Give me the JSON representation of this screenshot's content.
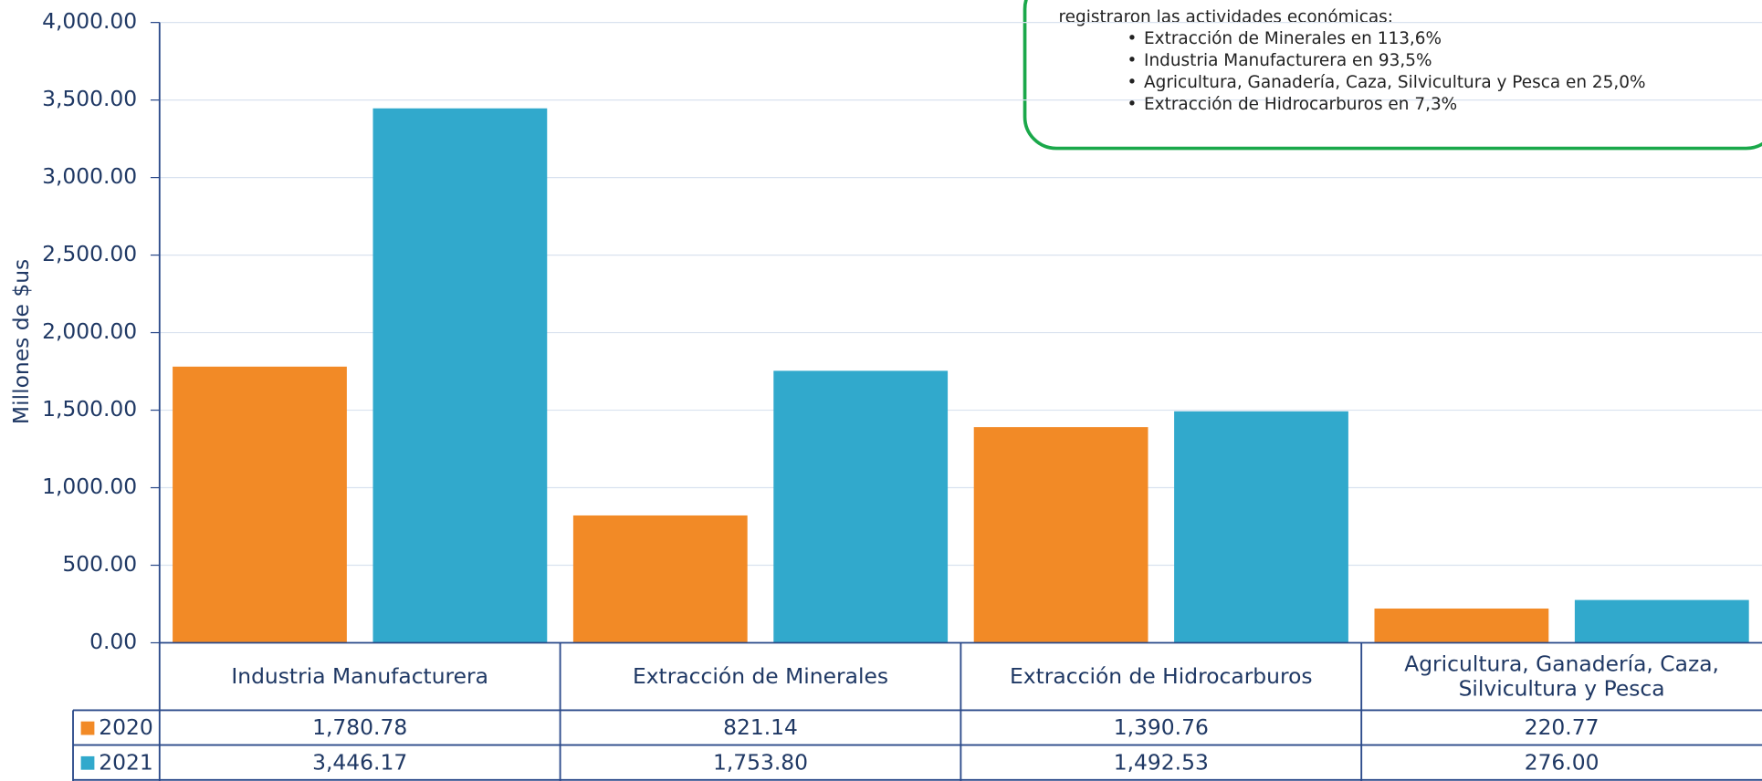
{
  "chart_data": {
    "type": "bar",
    "y_label": "Millones de $us",
    "categories": [
      "Industria Manufacturera",
      "Extracción de Minerales",
      "Extracción de Hidrocarburos",
      "Agricultura, Ganadería, Caza, Silvicultura y Pesca"
    ],
    "series": [
      {
        "name": "2020",
        "color": "#f28a26",
        "values": [
          1780.78,
          821.14,
          1390.76,
          220.77
        ],
        "value_labels": [
          "1,780.78",
          "821.14",
          "1,390.76",
          "220.77"
        ]
      },
      {
        "name": "2021",
        "color": "#31a9cc",
        "values": [
          3446.17,
          1753.8,
          1492.53,
          276.0
        ],
        "value_labels": [
          "3,446.17",
          "1,753.80",
          "1,492.53",
          "276.00"
        ]
      }
    ],
    "ylim": [
      0,
      4000
    ],
    "yticks": [
      {
        "value": 0,
        "label": "0.00"
      },
      {
        "value": 500,
        "label": "500.00"
      },
      {
        "value": 1000,
        "label": "1,000.00"
      },
      {
        "value": 1500,
        "label": "1,500.00"
      },
      {
        "value": 2000,
        "label": "2,000.00"
      },
      {
        "value": 2500,
        "label": "2,500.00"
      },
      {
        "value": 3000,
        "label": "3,000.00"
      },
      {
        "value": 3500,
        "label": "3,500.00"
      },
      {
        "value": 4000,
        "label": "4,000.00"
      }
    ],
    "grid": true,
    "note": {
      "intro": "registraron las actividades económicas:",
      "bullets": [
        "Extracción de Minerales en 113,6%",
        "Industria Manufacturera en 93,5%",
        "Agricultura, Ganadería, Caza, Silvicultura y Pesca en 25,0%",
        "Extracción de Hidrocarburos  en 7,3%"
      ]
    }
  }
}
